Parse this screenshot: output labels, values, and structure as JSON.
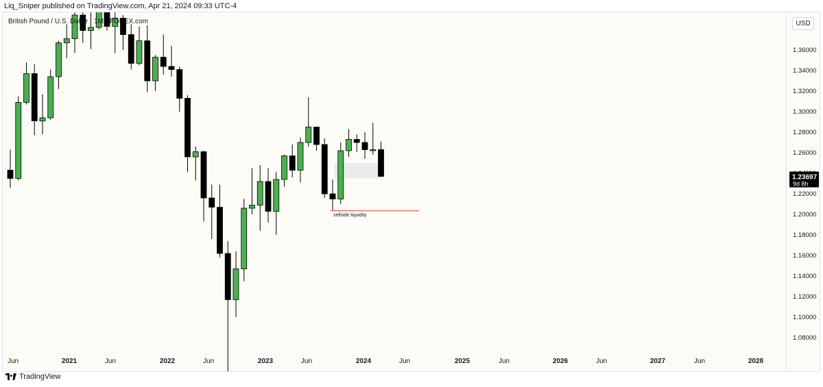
{
  "header": {
    "published": "Liq_Sniper published on TradingView.com, Apr 21, 2024 09:33 UTC-4"
  },
  "symbol": {
    "title": "British Pound / U.S. Dollar · 1M · FOREX.com"
  },
  "currency_button": "USD",
  "price_label": {
    "value": "1.23697",
    "countdown": "9d 8h"
  },
  "annotation": {
    "text": "sellside liquidity",
    "level": 1.2035
  },
  "footer": {
    "brand": "TradingView"
  },
  "colors": {
    "background": "#fdfbf6",
    "bull": "#4caf50",
    "bear": "#000000",
    "line_red": "#e53935",
    "imbalance": "#e4e4e4"
  },
  "chart_data": {
    "type": "candlestick",
    "timeframe": "monthly",
    "ylim": [
      1.07,
      1.38
    ],
    "y_ticks": [
      "1.36000",
      "1.34000",
      "1.32000",
      "1.30000",
      "1.28000",
      "1.26000",
      "1.24000",
      "1.22000",
      "1.20000",
      "1.18000",
      "1.16000",
      "1.14000",
      "1.12000",
      "1.10000",
      "1.08000"
    ],
    "x_ticks": [
      "Jun",
      "2021",
      "Jun",
      "2022",
      "Jun",
      "2023",
      "Jun",
      "2024",
      "Jun",
      "2025",
      "Jun",
      "2026",
      "Jun",
      "2027",
      "Jun",
      "2028"
    ],
    "candles": [
      {
        "t": "2020-06",
        "o": 1.243,
        "h": 1.263,
        "l": 1.226,
        "c": 1.235
      },
      {
        "t": "2020-07",
        "o": 1.235,
        "h": 1.315,
        "l": 1.233,
        "c": 1.309
      },
      {
        "t": "2020-08",
        "o": 1.309,
        "h": 1.348,
        "l": 1.307,
        "c": 1.337
      },
      {
        "t": "2020-09",
        "o": 1.337,
        "h": 1.346,
        "l": 1.277,
        "c": 1.291
      },
      {
        "t": "2020-10",
        "o": 1.291,
        "h": 1.317,
        "l": 1.278,
        "c": 1.294
      },
      {
        "t": "2020-11",
        "o": 1.294,
        "h": 1.341,
        "l": 1.292,
        "c": 1.334
      },
      {
        "t": "2020-12",
        "o": 1.334,
        "h": 1.369,
        "l": 1.322,
        "c": 1.367
      },
      {
        "t": "2021-01",
        "o": 1.367,
        "h": 1.385,
        "l": 1.352,
        "c": 1.371
      },
      {
        "t": "2021-02",
        "o": 1.371,
        "h": 1.423,
        "l": 1.357,
        "c": 1.394
      },
      {
        "t": "2021-03",
        "o": 1.394,
        "h": 1.401,
        "l": 1.367,
        "c": 1.379
      },
      {
        "t": "2021-04",
        "o": 1.379,
        "h": 1.398,
        "l": 1.361,
        "c": 1.382
      },
      {
        "t": "2021-05",
        "o": 1.382,
        "h": 1.425,
        "l": 1.38,
        "c": 1.416
      },
      {
        "t": "2021-06",
        "o": 1.416,
        "h": 1.423,
        "l": 1.379,
        "c": 1.383
      },
      {
        "t": "2021-07",
        "o": 1.383,
        "h": 1.398,
        "l": 1.357,
        "c": 1.391
      },
      {
        "t": "2021-08",
        "o": 1.391,
        "h": 1.394,
        "l": 1.36,
        "c": 1.375
      },
      {
        "t": "2021-09",
        "o": 1.375,
        "h": 1.385,
        "l": 1.341,
        "c": 1.347
      },
      {
        "t": "2021-10",
        "o": 1.347,
        "h": 1.383,
        "l": 1.345,
        "c": 1.369
      },
      {
        "t": "2021-11",
        "o": 1.369,
        "h": 1.384,
        "l": 1.319,
        "c": 1.33
      },
      {
        "t": "2021-12",
        "o": 1.33,
        "h": 1.355,
        "l": 1.32,
        "c": 1.353
      },
      {
        "t": "2022-01",
        "o": 1.353,
        "h": 1.375,
        "l": 1.336,
        "c": 1.344
      },
      {
        "t": "2022-02",
        "o": 1.344,
        "h": 1.364,
        "l": 1.334,
        "c": 1.341
      },
      {
        "t": "2022-03",
        "o": 1.341,
        "h": 1.344,
        "l": 1.3,
        "c": 1.313
      },
      {
        "t": "2022-04",
        "o": 1.313,
        "h": 1.316,
        "l": 1.241,
        "c": 1.256
      },
      {
        "t": "2022-05",
        "o": 1.256,
        "h": 1.266,
        "l": 1.233,
        "c": 1.261
      },
      {
        "t": "2022-06",
        "o": 1.261,
        "h": 1.262,
        "l": 1.193,
        "c": 1.216
      },
      {
        "t": "2022-07",
        "o": 1.216,
        "h": 1.229,
        "l": 1.176,
        "c": 1.207
      },
      {
        "t": "2022-08",
        "o": 1.207,
        "h": 1.229,
        "l": 1.158,
        "c": 1.162
      },
      {
        "t": "2022-09",
        "o": 1.162,
        "h": 1.174,
        "l": 1.035,
        "c": 1.117
      },
      {
        "t": "2022-10",
        "o": 1.117,
        "h": 1.164,
        "l": 1.1,
        "c": 1.147
      },
      {
        "t": "2022-11",
        "o": 1.147,
        "h": 1.215,
        "l": 1.135,
        "c": 1.206
      },
      {
        "t": "2022-12",
        "o": 1.206,
        "h": 1.245,
        "l": 1.2,
        "c": 1.209
      },
      {
        "t": "2023-01",
        "o": 1.209,
        "h": 1.248,
        "l": 1.184,
        "c": 1.232
      },
      {
        "t": "2023-02",
        "o": 1.232,
        "h": 1.245,
        "l": 1.192,
        "c": 1.203
      },
      {
        "t": "2023-03",
        "o": 1.203,
        "h": 1.241,
        "l": 1.18,
        "c": 1.234
      },
      {
        "t": "2023-04",
        "o": 1.234,
        "h": 1.258,
        "l": 1.227,
        "c": 1.257
      },
      {
        "t": "2023-05",
        "o": 1.257,
        "h": 1.268,
        "l": 1.236,
        "c": 1.243
      },
      {
        "t": "2023-06",
        "o": 1.243,
        "h": 1.275,
        "l": 1.231,
        "c": 1.27
      },
      {
        "t": "2023-07",
        "o": 1.27,
        "h": 1.314,
        "l": 1.266,
        "c": 1.285
      },
      {
        "t": "2023-08",
        "o": 1.285,
        "h": 1.284,
        "l": 1.262,
        "c": 1.268
      },
      {
        "t": "2023-09",
        "o": 1.268,
        "h": 1.274,
        "l": 1.216,
        "c": 1.22
      },
      {
        "t": "2023-10",
        "o": 1.22,
        "h": 1.234,
        "l": 1.204,
        "c": 1.215
      },
      {
        "t": "2023-11",
        "o": 1.215,
        "h": 1.27,
        "l": 1.21,
        "c": 1.262
      },
      {
        "t": "2023-12",
        "o": 1.262,
        "h": 1.283,
        "l": 1.256,
        "c": 1.273
      },
      {
        "t": "2024-01",
        "o": 1.273,
        "h": 1.278,
        "l": 1.261,
        "c": 1.27
      },
      {
        "t": "2024-02",
        "o": 1.27,
        "h": 1.28,
        "l": 1.254,
        "c": 1.263
      },
      {
        "t": "2024-03",
        "o": 1.263,
        "h": 1.289,
        "l": 1.258,
        "c": 1.263
      },
      {
        "t": "2024-04",
        "o": 1.263,
        "h": 1.271,
        "l": 1.237,
        "c": 1.237
      }
    ]
  }
}
